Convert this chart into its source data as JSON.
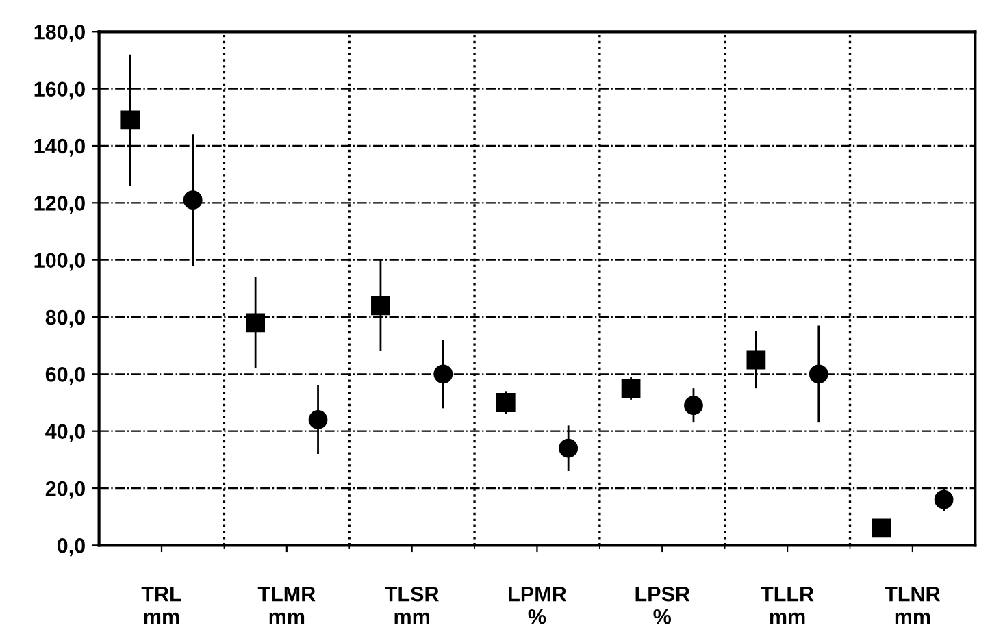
{
  "chart_data": {
    "type": "scatter",
    "categories": [
      "TRL\nmm",
      "TLMR\nmm",
      "TLSR\nmm",
      "LPMR\n%",
      "LPSR\n%",
      "TLLR\nmm",
      "TLNR\nmm"
    ],
    "series": [
      {
        "color": "#000000",
        "marker": "square",
        "values": [
          149,
          78,
          84,
          50,
          55,
          65,
          6
        ],
        "errors": [
          23,
          16,
          16,
          4,
          4,
          10,
          null
        ]
      },
      {
        "color": "#000000",
        "marker": "circle",
        "values": [
          121,
          44,
          60,
          34,
          49,
          60,
          16
        ],
        "errors": [
          23,
          12,
          12,
          8,
          6,
          17,
          4
        ]
      }
    ],
    "ylim": [
      0,
      180
    ],
    "yticks": [
      {
        "value": 0,
        "label": "0,0"
      },
      {
        "value": 20,
        "label": "20,0"
      },
      {
        "value": 40,
        "label": "40,0"
      },
      {
        "value": 60,
        "label": "60,0"
      },
      {
        "value": 80,
        "label": "80,0"
      },
      {
        "value": 100,
        "label": "100,0"
      },
      {
        "value": 120,
        "label": "120,0"
      },
      {
        "value": 140,
        "label": "140,0"
      },
      {
        "value": 160,
        "label": "160,0"
      },
      {
        "value": 180,
        "label": "180,0"
      }
    ],
    "grid": true
  }
}
